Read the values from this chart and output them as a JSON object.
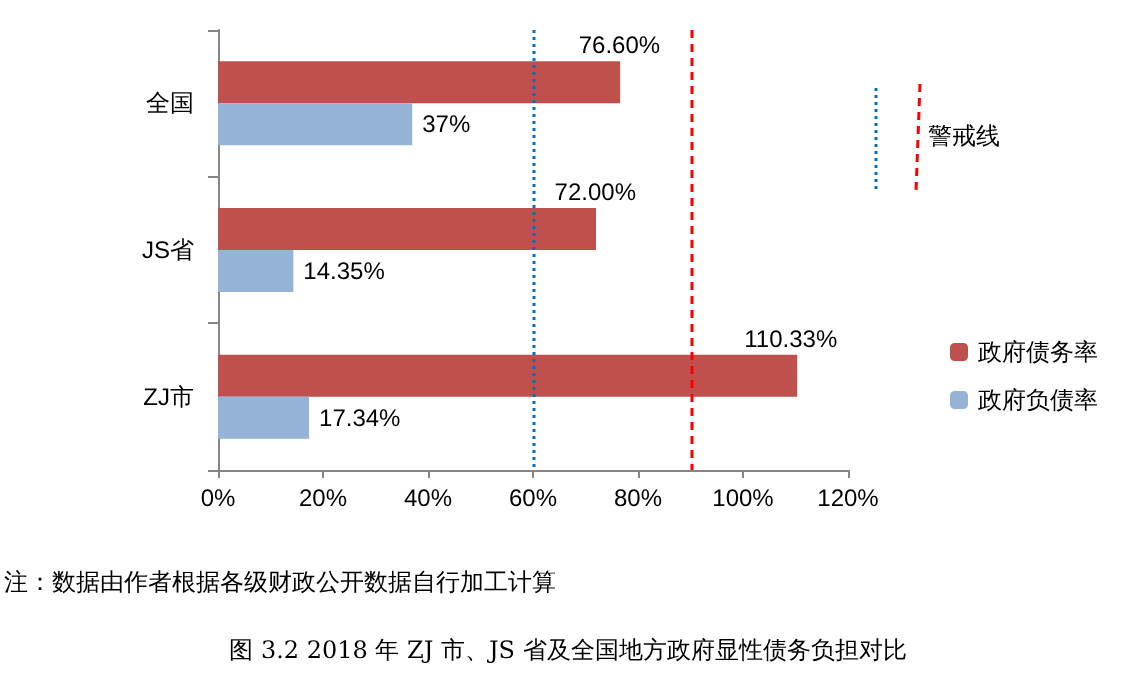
{
  "chart_data": {
    "type": "bar",
    "orientation": "horizontal",
    "title": "图 3.2 2018 年 ZJ 市、JS 省及全国地方政府显性债务负担对比",
    "categories": [
      "全国",
      "JS省",
      "ZJ市"
    ],
    "series": [
      {
        "name": "政府债务率",
        "color": "#c0504d",
        "values": [
          76.6,
          72,
          110.33
        ],
        "value_labels": [
          "76.60%",
          "72.00%",
          "110.33%"
        ]
      },
      {
        "name": "政府负债率",
        "color": "#95b3d7",
        "values": [
          37,
          14.35,
          17.34
        ],
        "value_labels": [
          "37%",
          "14.35%",
          "17.34%"
        ]
      }
    ],
    "xlim": [
      0,
      120
    ],
    "xticks": [
      {
        "value": 0,
        "label": "0%"
      },
      {
        "value": 20,
        "label": "20%"
      },
      {
        "value": 40,
        "label": "40%"
      },
      {
        "value": 60,
        "label": "60%"
      },
      {
        "value": 80,
        "label": "80%"
      },
      {
        "value": 100,
        "label": "100%"
      },
      {
        "value": 120,
        "label": "120%"
      }
    ],
    "ref_lines": [
      {
        "axis": "x",
        "value": 60,
        "color": "#0070c0",
        "line_style": "dotted"
      },
      {
        "axis": "x",
        "value": 90,
        "color": "#ff0000",
        "line_style": "dashed"
      }
    ],
    "annotations": [
      "警戒线",
      "注：数据由作者根据各级财政公开数据自行加工计算"
    ],
    "legend": "right",
    "grid": false
  }
}
